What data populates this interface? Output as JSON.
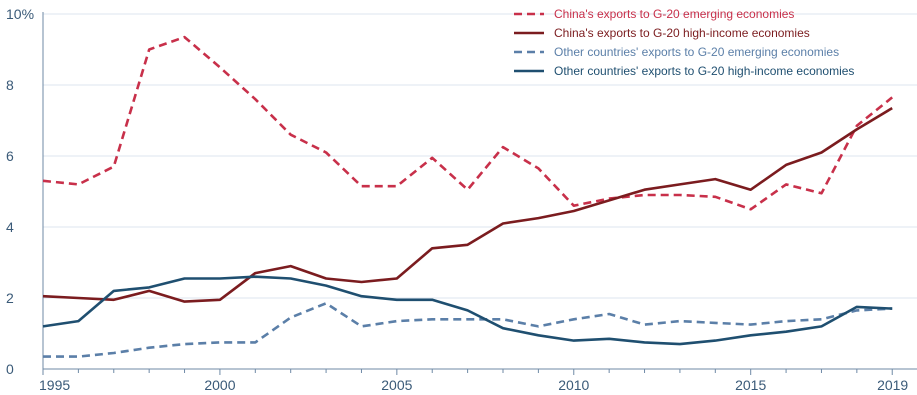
{
  "chart_data": {
    "type": "line",
    "title": "",
    "xlabel": "",
    "ylabel": "",
    "x": [
      1995,
      1996,
      1997,
      1998,
      1999,
      2000,
      2001,
      2002,
      2003,
      2004,
      2005,
      2006,
      2007,
      2008,
      2009,
      2010,
      2011,
      2012,
      2013,
      2014,
      2015,
      2016,
      2017,
      2018,
      2019
    ],
    "xlim": [
      1995,
      2019.7
    ],
    "ylim": [
      0,
      10
    ],
    "x_ticks": [
      "1995",
      "2000",
      "2005",
      "2010",
      "2015",
      "2019"
    ],
    "x_tick_values": [
      1995,
      2000,
      2005,
      2010,
      2015,
      2019
    ],
    "y_ticks": [
      "0",
      "2",
      "4",
      "6",
      "8",
      "10%"
    ],
    "y_tick_values": [
      0,
      2,
      4,
      6,
      8,
      10
    ],
    "grid": "horizontal",
    "legend_position": "top-right",
    "series": [
      {
        "name": "China's exports to G-20 emerging economies",
        "color": "#c8304a",
        "style": "dashed",
        "values": [
          5.3,
          5.2,
          5.7,
          9.0,
          9.35,
          8.5,
          7.6,
          6.6,
          6.1,
          5.15,
          5.15,
          5.95,
          5.05,
          6.25,
          5.65,
          4.6,
          4.8,
          4.9,
          4.9,
          4.85,
          4.5,
          5.2,
          4.95,
          6.85,
          7.65
        ]
      },
      {
        "name": "China's exports to G-20 high-income economies",
        "color": "#7b1c1f",
        "style": "solid",
        "values": [
          2.05,
          2.0,
          1.95,
          2.2,
          1.9,
          1.95,
          2.7,
          2.9,
          2.55,
          2.45,
          2.55,
          3.4,
          3.5,
          4.1,
          4.25,
          4.45,
          4.75,
          5.05,
          5.2,
          5.35,
          5.05,
          5.75,
          6.1,
          6.75,
          7.35
        ]
      },
      {
        "name": "Other countries' exports to G-20 emerging economies",
        "color": "#5b7fa8",
        "style": "dashed",
        "values": [
          0.35,
          0.35,
          0.45,
          0.6,
          0.7,
          0.75,
          0.75,
          1.45,
          1.85,
          1.2,
          1.35,
          1.4,
          1.4,
          1.4,
          1.2,
          1.4,
          1.55,
          1.25,
          1.35,
          1.3,
          1.25,
          1.35,
          1.4,
          1.65,
          1.7
        ]
      },
      {
        "name": "Other countries' exports to G-20 high-income economies",
        "color": "#1f4f70",
        "style": "solid",
        "values": [
          1.2,
          1.35,
          2.2,
          2.3,
          2.55,
          2.55,
          2.6,
          2.55,
          2.35,
          2.05,
          1.95,
          1.95,
          1.65,
          1.15,
          0.95,
          0.8,
          0.85,
          0.75,
          0.7,
          0.8,
          0.95,
          1.05,
          1.2,
          1.75,
          1.7
        ]
      }
    ]
  }
}
